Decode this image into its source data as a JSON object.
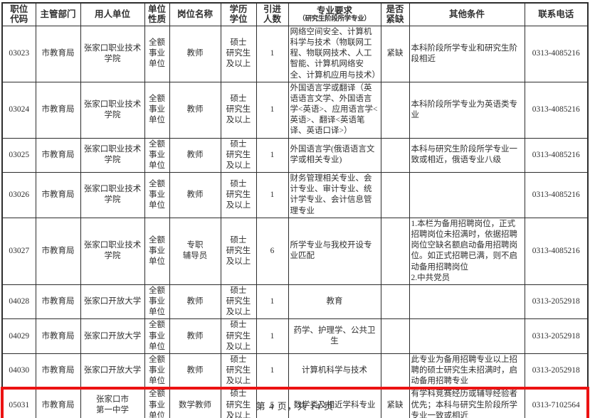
{
  "page": {
    "footer": "第 4 页，共 14 页"
  },
  "colors": {
    "highlight_red": "#ec1212",
    "table_border": "#2d2d2d",
    "text": "#303030"
  },
  "table": {
    "columns": [
      {
        "key": "code",
        "label": "职位\n代码"
      },
      {
        "key": "dept",
        "label": "主管部门"
      },
      {
        "key": "employer",
        "label": "用人单位"
      },
      {
        "key": "unit_type",
        "label": "单位\n性质"
      },
      {
        "key": "position",
        "label": "岗位名称"
      },
      {
        "key": "degree",
        "label": "学历\n学位"
      },
      {
        "key": "count",
        "label": "引进\n人数"
      },
      {
        "key": "major",
        "label": "专业要求",
        "sub": "（研究生阶段所学专业）"
      },
      {
        "key": "shortage",
        "label": "是否\n紧缺"
      },
      {
        "key": "other",
        "label": "其他条件"
      },
      {
        "key": "phone",
        "label": "联系电话"
      }
    ],
    "rows": [
      {
        "code": "03023",
        "dept": "市教育局",
        "employer": "张家口职业技术\n学院",
        "unit_type": "全额\n事业\n单位",
        "position": "教师",
        "degree": "硕士\n研究生\n及以上",
        "count": "1",
        "major": "网络空间安全、计算机科学与技术（物联网工程、物联网技术、人工智能、计算机网络安全、计算机应用与技术）",
        "shortage": "紧缺",
        "other": "本科阶段所学专业和研究生阶段相近",
        "phone": "0313-4085216",
        "highlighted": false
      },
      {
        "code": "03024",
        "dept": "市教育局",
        "employer": "张家口职业技术\n学院",
        "unit_type": "全额\n事业\n单位",
        "position": "教师",
        "degree": "硕士\n研究生\n及以上",
        "count": "1",
        "major": "外国语言学或翻译（英语语言文学、外国语言学<英语>、应用语言学<英语>、翻译<英语笔译、英语口译>）",
        "shortage": "",
        "other": "本科阶段所学专业为英语类专业",
        "phone": "0313-4085216",
        "highlighted": false
      },
      {
        "code": "03025",
        "dept": "市教育局",
        "employer": "张家口职业技术\n学院",
        "unit_type": "全额\n事业\n单位",
        "position": "教师",
        "degree": "硕士\n研究生\n及以上",
        "count": "1",
        "major": "外国语言学(俄语语言文学或相关专业)",
        "shortage": "",
        "other": "本科与研究生阶段所学专业一致或相近，俄语专业八级",
        "phone": "0313-4085216",
        "highlighted": false
      },
      {
        "code": "03026",
        "dept": "市教育局",
        "employer": "张家口职业技术\n学院",
        "unit_type": "全额\n事业\n单位",
        "position": "教师",
        "degree": "硕士\n研究生\n及以上",
        "count": "1",
        "major": "财务管理相关专业、会计专业、审计专业、统计学专业、会计信息管理专业",
        "shortage": "",
        "other": "",
        "phone": "0313-4085216",
        "highlighted": false
      },
      {
        "code": "03027",
        "dept": "市教育局",
        "employer": "张家口职业技术\n学院",
        "unit_type": "全额\n事业\n单位",
        "position": "专职\n辅导员",
        "degree": "硕士\n研究生\n及以上",
        "count": "6",
        "major": "所学专业与我校开设专业匹配",
        "shortage": "",
        "other": "1.本栏为备用招聘岗位，正式招聘岗位未招满时，依据招聘岗位空缺名额启动备用招聘岗位。如正式招聘已满，则不启动备用招聘岗位\n2.中共党员",
        "phone": "0313-4085216",
        "highlighted": false
      },
      {
        "code": "04028",
        "dept": "市教育局",
        "employer": "张家口开放大学",
        "unit_type": "全额\n事业\n单位",
        "position": "教师",
        "degree": "硕士\n研究生\n及以上",
        "count": "1",
        "major": "教育",
        "shortage": "",
        "other": "",
        "phone": "0313-2052918",
        "highlighted": false
      },
      {
        "code": "04029",
        "dept": "市教育局",
        "employer": "张家口开放大学",
        "unit_type": "全额\n事业\n单位",
        "position": "教师",
        "degree": "硕士\n研究生\n及以上",
        "count": "1",
        "major": "药学、护理学、公共卫生",
        "shortage": "",
        "other": "",
        "phone": "0313-2052918",
        "highlighted": false
      },
      {
        "code": "04030",
        "dept": "市教育局",
        "employer": "张家口开放大学",
        "unit_type": "全额\n事业\n单位",
        "position": "教师",
        "degree": "硕士\n研究生\n及以上",
        "count": "1",
        "major": "计算机科学与技术",
        "shortage": "",
        "other": "此专业为备用招聘专业以上招聘的硕士研究生未招满时，启动备用招聘专业",
        "phone": "0313-2052918",
        "highlighted": false
      },
      {
        "code": "05031",
        "dept": "市教育局",
        "employer": "张家口市\n第一中学",
        "unit_type": "全额\n事业\n单位",
        "position": "数学教师",
        "degree": "硕士\n研究生\n及以上",
        "count": "5",
        "major": "数学类及相近学科专业",
        "shortage": "紧缺",
        "other": "有学科竞赛经历或辅导经验者优先；本科与研究生阶段所学专业一致或相近",
        "phone": "0313-7102564",
        "highlighted": true
      }
    ]
  }
}
